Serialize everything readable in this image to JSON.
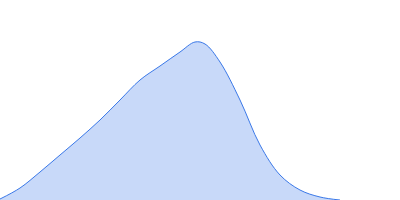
{
  "chart_data": {
    "type": "area",
    "x": [
      0,
      20,
      40,
      60,
      80,
      100,
      120,
      140,
      160,
      180,
      195,
      205,
      220,
      240,
      260,
      280,
      300,
      320,
      340
    ],
    "values": [
      1,
      12,
      28,
      45,
      62,
      80,
      100,
      120,
      134,
      148,
      158,
      156,
      138,
      100,
      55,
      25,
      10,
      3,
      0
    ],
    "color": "#3a78e8",
    "line_style": "spline",
    "xlim": [
      0,
      400
    ],
    "ylim": [
      0,
      200
    ],
    "grid": false,
    "tick_labels": false
  }
}
